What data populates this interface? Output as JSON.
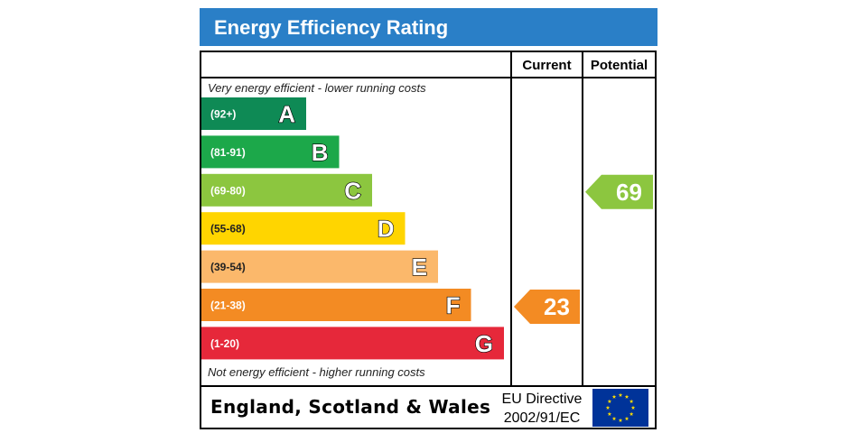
{
  "colors": {
    "title_bg": "#2a7fc7",
    "A": "#0e8a55",
    "B": "#1ca84a",
    "C": "#8cc63f",
    "D": "#ffd500",
    "E": "#fbb86b",
    "F": "#f38b23",
    "G": "#e6283a",
    "eu_flag": "#003399",
    "eu_star": "#ffdd00"
  },
  "chart_data": {
    "type": "bar",
    "title": "Energy Efficiency Rating",
    "columns": {
      "current": "Current",
      "potential": "Potential"
    },
    "top_note": "Very energy efficient - lower running costs",
    "bottom_note": "Not energy efficient - higher running costs",
    "bands": [
      {
        "letter": "A",
        "range": "(92+)",
        "min": 92,
        "max": 100
      },
      {
        "letter": "B",
        "range": "(81-91)",
        "min": 81,
        "max": 91
      },
      {
        "letter": "C",
        "range": "(69-80)",
        "min": 69,
        "max": 80
      },
      {
        "letter": "D",
        "range": "(55-68)",
        "min": 55,
        "max": 68
      },
      {
        "letter": "E",
        "range": "(39-54)",
        "min": 39,
        "max": 54
      },
      {
        "letter": "F",
        "range": "(21-38)",
        "min": 21,
        "max": 38
      },
      {
        "letter": "G",
        "range": "(1-20)",
        "min": 1,
        "max": 20
      }
    ],
    "current": {
      "value": 23,
      "band": "F"
    },
    "potential": {
      "value": 69,
      "band": "C"
    },
    "footer": {
      "region": "England, Scotland & Wales",
      "directive_line1": "EU Directive",
      "directive_line2": "2002/91/EC"
    }
  }
}
